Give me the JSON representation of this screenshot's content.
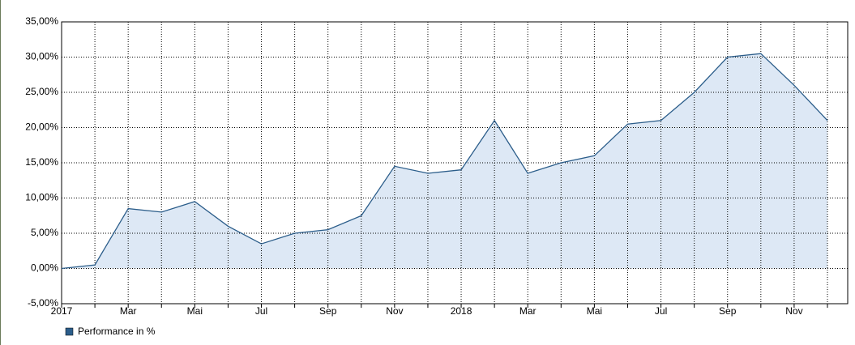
{
  "chart_data": {
    "type": "area",
    "x": [
      "2017-01",
      "2017-02",
      "2017-03",
      "2017-04",
      "2017-05",
      "2017-06",
      "2017-07",
      "2017-08",
      "2017-09",
      "2017-10",
      "2017-11",
      "2017-12",
      "2018-01",
      "2018-02",
      "2018-03",
      "2018-04",
      "2018-05",
      "2018-06",
      "2018-07",
      "2018-08",
      "2018-09",
      "2018-10",
      "2018-11",
      "2018-12"
    ],
    "series": [
      {
        "name": "Performance in %",
        "color": "#2b5d8a",
        "fill": "#dde8f5",
        "values": [
          0,
          0.5,
          8.5,
          8,
          9.5,
          6,
          3.5,
          5,
          5.5,
          7.5,
          14.5,
          13.5,
          14,
          21,
          13.5,
          15,
          16,
          20.5,
          21,
          25,
          30,
          30.5,
          26,
          21
        ]
      }
    ],
    "xlim": [
      "2017-01",
      "2018-12"
    ],
    "xticks": [
      {
        "value": "2017-01",
        "label": "2017"
      },
      {
        "value": "2017-02",
        "label": null
      },
      {
        "value": "2017-03",
        "label": "Mar"
      },
      {
        "value": "2017-04",
        "label": null
      },
      {
        "value": "2017-05",
        "label": "Mai"
      },
      {
        "value": "2017-06",
        "label": null
      },
      {
        "value": "2017-07",
        "label": "Jul"
      },
      {
        "value": "2017-08",
        "label": null
      },
      {
        "value": "2017-09",
        "label": "Sep"
      },
      {
        "value": "2017-10",
        "label": null
      },
      {
        "value": "2017-11",
        "label": "Nov"
      },
      {
        "value": "2017-12",
        "label": null
      },
      {
        "value": "2018-01",
        "label": "2018"
      },
      {
        "value": "2018-02",
        "label": null
      },
      {
        "value": "2018-03",
        "label": "Mar"
      },
      {
        "value": "2018-04",
        "label": null
      },
      {
        "value": "2018-05",
        "label": "Mai"
      },
      {
        "value": "2018-06",
        "label": null
      },
      {
        "value": "2018-07",
        "label": "Jul"
      },
      {
        "value": "2018-08",
        "label": null
      },
      {
        "value": "2018-09",
        "label": "Sep"
      },
      {
        "value": "2018-10",
        "label": null
      },
      {
        "value": "2018-11",
        "label": "Nov"
      },
      {
        "value": "2018-12",
        "label": null
      }
    ],
    "ylim": [
      -5,
      35
    ],
    "yticks": [
      {
        "value": -5,
        "label": "-5,00%"
      },
      {
        "value": 0,
        "label": "0,00%"
      },
      {
        "value": 5,
        "label": "5,00%"
      },
      {
        "value": 10,
        "label": "10,00%"
      },
      {
        "value": 15,
        "label": "15,00%"
      },
      {
        "value": 20,
        "label": "20,00%"
      },
      {
        "value": 25,
        "label": "25,00%"
      },
      {
        "value": 30,
        "label": "30,00%"
      },
      {
        "value": 35,
        "label": "35,00%"
      }
    ],
    "grid": true,
    "legend": "bottom-left"
  }
}
